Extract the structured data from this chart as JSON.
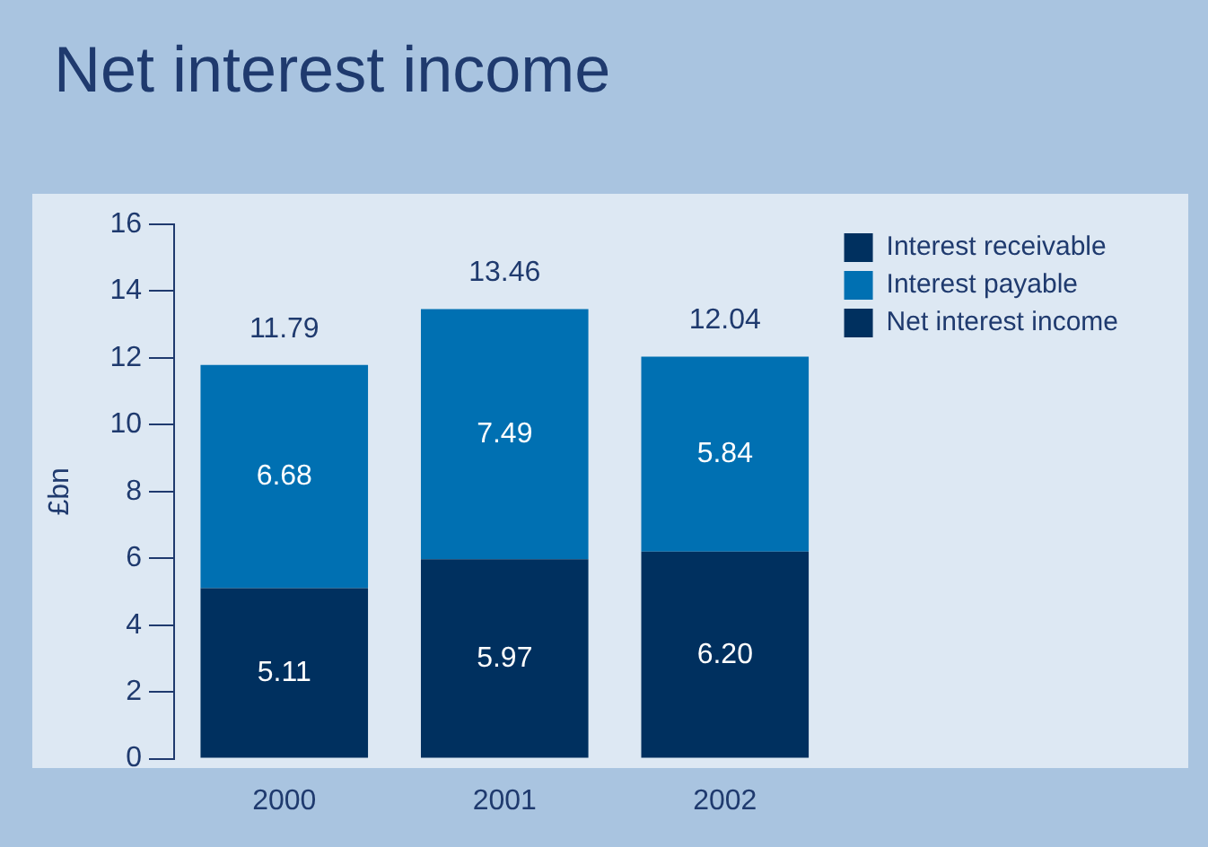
{
  "chart_data": {
    "type": "bar",
    "title": "Net interest income",
    "ylabel": "£bn",
    "categories": [
      "2000",
      "2001",
      "2002"
    ],
    "stacked": true,
    "series": [
      {
        "name": "Net interest income",
        "color": "#00305f",
        "values": [
          5.11,
          5.97,
          6.2
        ],
        "value_labels": [
          "5.11",
          "5.97",
          "6.20"
        ]
      },
      {
        "name": "Interest payable",
        "color": "#0070b2",
        "values": [
          6.68,
          7.49,
          5.84
        ],
        "value_labels": [
          "6.68",
          "7.49",
          "5.84"
        ]
      },
      {
        "name": "Interest receivable",
        "color": "#00305f",
        "values": [
          null,
          null,
          null
        ]
      }
    ],
    "totals": [
      "11.79",
      "13.46",
      "12.04"
    ],
    "ylim": [
      0,
      16
    ],
    "yticks": [
      0,
      2,
      4,
      6,
      8,
      10,
      12,
      14,
      16
    ],
    "grid": false,
    "legend": "top right"
  }
}
